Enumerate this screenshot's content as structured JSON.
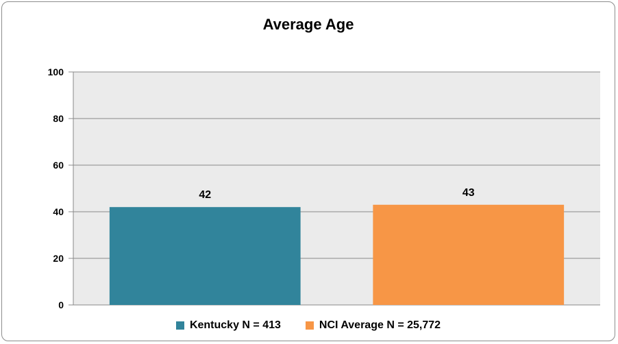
{
  "chart_data": {
    "type": "bar",
    "title": "Average Age",
    "categories": [
      "Kentucky N = 413",
      "NCI Average N = 25,772"
    ],
    "values": [
      42,
      43
    ],
    "data_labels": [
      "42",
      "43"
    ],
    "colors": [
      "#31849b",
      "#f79646"
    ],
    "ylim": [
      0,
      100
    ],
    "yticks": [
      0,
      20,
      40,
      60,
      80,
      100
    ],
    "xlabel": "",
    "ylabel": "",
    "grid": true,
    "legend_position": "bottom",
    "plot_background": "#ebebeb"
  }
}
